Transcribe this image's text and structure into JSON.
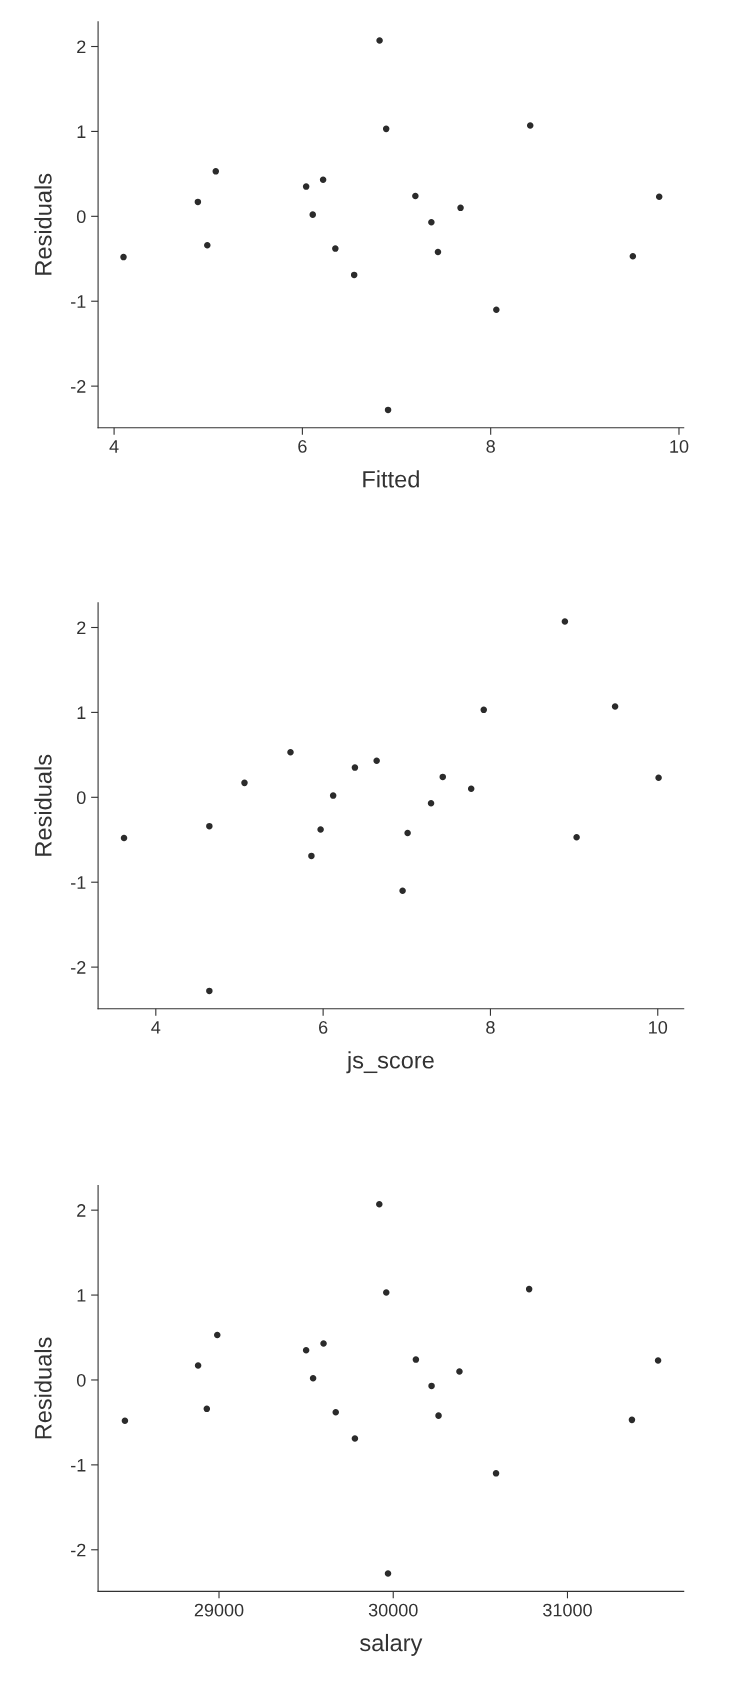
{
  "chart_data": [
    {
      "type": "scatter",
      "xlabel": "Fitted",
      "ylabel": "Residuals",
      "marker": "circle",
      "grid": false,
      "legend": false,
      "xlim": [
        3.83,
        10.05
      ],
      "ylim": [
        -2.49,
        2.29
      ],
      "xticks": [
        4,
        6,
        8,
        10
      ],
      "yticks": [
        -2,
        -1,
        0,
        1,
        2
      ],
      "x": [
        4.1,
        4.89,
        4.99,
        5.08,
        6.04,
        6.11,
        6.22,
        6.35,
        6.55,
        6.82,
        6.89,
        6.91,
        7.2,
        7.37,
        7.44,
        7.68,
        8.06,
        8.42,
        9.51,
        9.79
      ],
      "series": [
        {
          "color": "#2b2b2b",
          "values": [
            -0.48,
            0.17,
            -0.34,
            0.53,
            0.35,
            0.02,
            0.43,
            -0.38,
            -0.69,
            2.07,
            1.03,
            -2.28,
            0.24,
            -0.07,
            -0.42,
            0.1,
            -1.1,
            1.07,
            -0.47,
            0.23
          ]
        }
      ]
    },
    {
      "type": "scatter",
      "xlabel": "js_score",
      "ylabel": "Residuals",
      "marker": "circle",
      "grid": false,
      "legend": false,
      "xlim": [
        3.31,
        10.31
      ],
      "ylim": [
        -2.49,
        2.29
      ],
      "xticks": [
        4,
        6,
        8,
        10
      ],
      "yticks": [
        -2,
        -1,
        0,
        1,
        2
      ],
      "x": [
        3.62,
        5.06,
        4.64,
        5.61,
        6.38,
        6.12,
        6.64,
        5.97,
        5.86,
        8.89,
        7.92,
        4.64,
        7.43,
        7.29,
        7.01,
        7.77,
        6.95,
        9.49,
        9.03,
        10.01
      ],
      "series": [
        {
          "color": "#2b2b2b",
          "values": [
            -0.48,
            0.17,
            -0.34,
            0.53,
            0.35,
            0.02,
            0.43,
            -0.38,
            -0.69,
            2.07,
            1.03,
            -2.28,
            0.24,
            -0.07,
            -0.42,
            0.1,
            -1.1,
            1.07,
            -0.47,
            0.23
          ]
        }
      ]
    },
    {
      "type": "scatter",
      "xlabel": "salary",
      "ylabel": "Residuals",
      "marker": "circle",
      "grid": false,
      "legend": false,
      "xlim": [
        28306,
        31667
      ],
      "ylim": [
        -2.49,
        2.29
      ],
      "xticks": [
        29000,
        30000,
        31000
      ],
      "yticks": [
        -2,
        -1,
        0,
        1,
        2
      ],
      "x": [
        28460,
        28880,
        28930,
        28990,
        29500,
        29540,
        29600,
        29670,
        29780,
        29920,
        29960,
        29970,
        30130,
        30220,
        30260,
        30380,
        30590,
        30780,
        31370,
        31520
      ],
      "series": [
        {
          "color": "#2b2b2b",
          "values": [
            -0.48,
            0.17,
            -0.34,
            0.53,
            0.35,
            0.02,
            0.43,
            -0.38,
            -0.69,
            2.07,
            1.03,
            -2.28,
            0.24,
            -0.07,
            -0.42,
            0.1,
            -1.1,
            1.07,
            -0.47,
            0.23
          ]
        }
      ]
    }
  ]
}
